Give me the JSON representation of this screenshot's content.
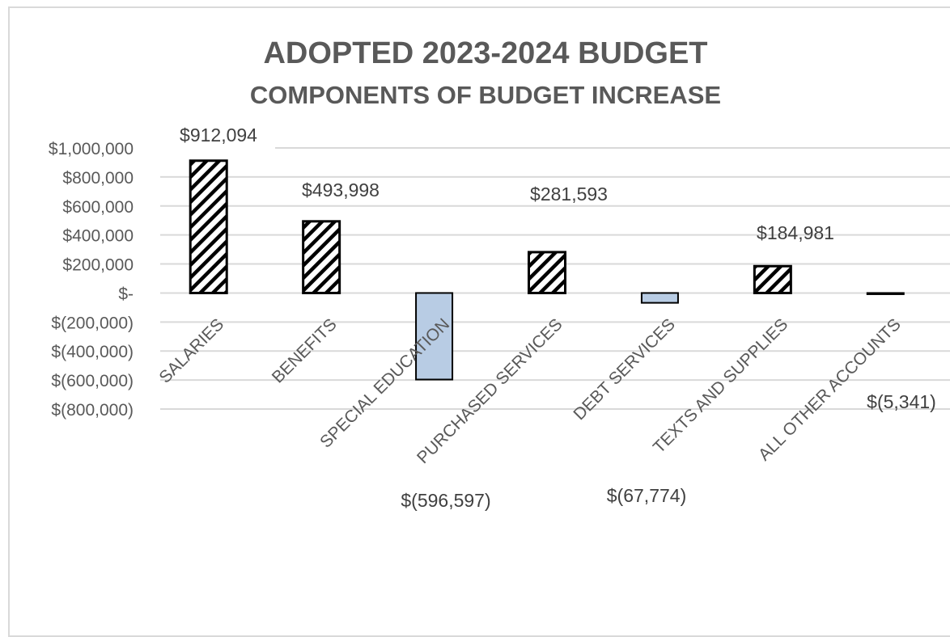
{
  "title": "ADOPTED 2023-2024 BUDGET",
  "subtitle": "COMPONENTS OF BUDGET INCREASE",
  "colors": {
    "positive_bar_stroke": "#000000",
    "positive_bar_hatch": "#000000",
    "negative_bar_fill": "#b8cce4",
    "negative_bar_stroke": "#000000",
    "gridline": "#d9d9d9",
    "text": "#595959"
  },
  "chart_data": {
    "type": "bar",
    "title": "ADOPTED 2023-2024 BUDGET",
    "subtitle": "COMPONENTS OF BUDGET INCREASE",
    "categories": [
      "SALARIES",
      "BENEFITS",
      "SPECIAL EDUCATION",
      "PURCHASED SERVICES",
      "DEBT SERVICES",
      "TEXTS AND SUPPLIES",
      "ALL OTHER ACCOUNTS"
    ],
    "values": [
      912094,
      493998,
      -596597,
      281593,
      -67774,
      184981,
      -5341
    ],
    "data_labels": [
      "$912,094",
      "$493,998",
      "$(596,597)",
      "$281,593",
      "$(67,774)",
      "$184,981",
      "$(5,341)"
    ],
    "y_ticks": [
      1000000,
      800000,
      600000,
      400000,
      200000,
      0,
      -200000,
      -400000,
      -600000,
      -800000
    ],
    "y_tick_labels": [
      "$1,000,000",
      "$800,000",
      "$600,000",
      "$400,000",
      "$200,000",
      "$-",
      "$(200,000)",
      "$(400,000)",
      "$(600,000)",
      "$(800,000)"
    ],
    "ylim": [
      -800000,
      1000000
    ],
    "grid": true,
    "legend": "none",
    "positive_fill": "diagonal-hatch",
    "negative_fill": "light-blue"
  }
}
